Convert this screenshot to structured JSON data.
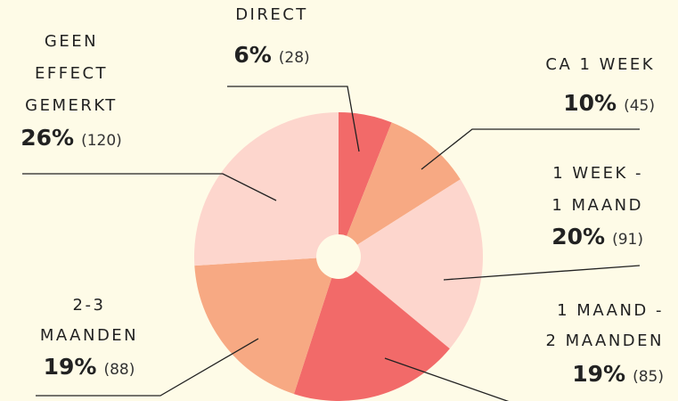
{
  "chart_data": {
    "type": "pie",
    "categories": [
      [
        "DIRECT"
      ],
      [
        "CA 1 WEEK"
      ],
      [
        "1 WEEK -",
        "1 MAAND"
      ],
      [
        "1 MAAND -",
        "2 MAANDEN"
      ],
      [
        "2-3",
        "MAANDEN"
      ],
      [
        "GEEN",
        "EFFECT",
        "GEMERKT"
      ]
    ],
    "values": [
      6,
      10,
      20,
      19,
      19,
      26
    ],
    "value_labels": [
      "6%",
      "10%",
      "20%",
      "19%",
      "19%",
      "26%"
    ],
    "count_labels": [
      "(28)",
      "(45)",
      "(91)",
      "(85)",
      "(88)",
      "(120)"
    ],
    "colors": [
      "#f26a69",
      "#f7a983",
      "#fdd6cd",
      "#f26a69",
      "#f7a983",
      "#fdd6cd"
    ]
  }
}
